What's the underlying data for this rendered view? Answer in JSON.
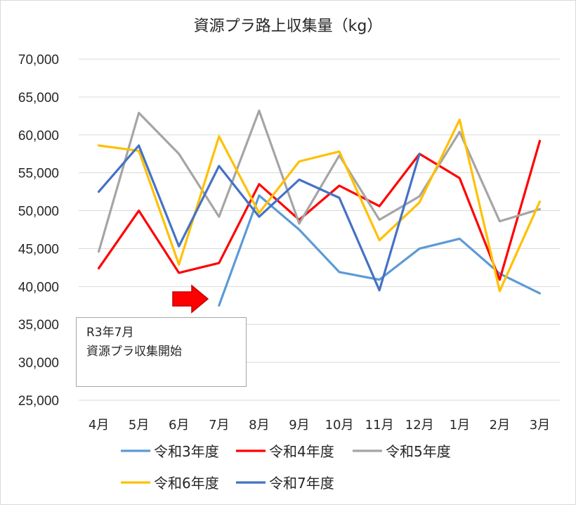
{
  "chart_data": {
    "type": "line",
    "title": "資源プラ路上収集量（kg）",
    "xlabel": "",
    "ylabel": "",
    "categories": [
      "4月",
      "5月",
      "6月",
      "7月",
      "8月",
      "9月",
      "10月",
      "11月",
      "12月",
      "1月",
      "2月",
      "3月"
    ],
    "ylim": [
      25000,
      70000
    ],
    "yticks": [
      "25,000",
      "30,000",
      "35,000",
      "40,000",
      "45,000",
      "50,000",
      "55,000",
      "60,000",
      "65,000",
      "70,000"
    ],
    "ytick_values": [
      25000,
      30000,
      35000,
      40000,
      45000,
      50000,
      55000,
      60000,
      65000,
      70000
    ],
    "grid": true,
    "legend_position": "bottom",
    "series": [
      {
        "name": "令和3年度",
        "color": "#5b9bd5",
        "values": [
          null,
          null,
          null,
          37500,
          52000,
          47500,
          41900,
          40900,
          45000,
          46300,
          41700,
          39100
        ]
      },
      {
        "name": "令和4年度",
        "color": "#ff0000",
        "values": [
          42400,
          50000,
          41800,
          43100,
          53500,
          48800,
          53300,
          50600,
          57500,
          54300,
          40900,
          59200
        ]
      },
      {
        "name": "令和5年度",
        "color": "#a5a5a5",
        "values": [
          44600,
          62900,
          57500,
          49200,
          63200,
          48300,
          57300,
          48800,
          51900,
          60400,
          48600,
          50200
        ]
      },
      {
        "name": "令和6年度",
        "color": "#ffc000",
        "values": [
          58600,
          57900,
          42900,
          59800,
          49700,
          56500,
          57800,
          46100,
          51100,
          62000,
          39400,
          51200
        ]
      },
      {
        "name": "令和7年度",
        "color": "#4472c4",
        "values": [
          52500,
          58600,
          45300,
          55900,
          49200,
          54100,
          51700,
          39500,
          57500,
          null,
          null,
          null
        ]
      }
    ]
  },
  "annotation": {
    "line1": "R3年7月",
    "line2": "資源プラ収集開始",
    "arrow_color": "#ff0000"
  }
}
